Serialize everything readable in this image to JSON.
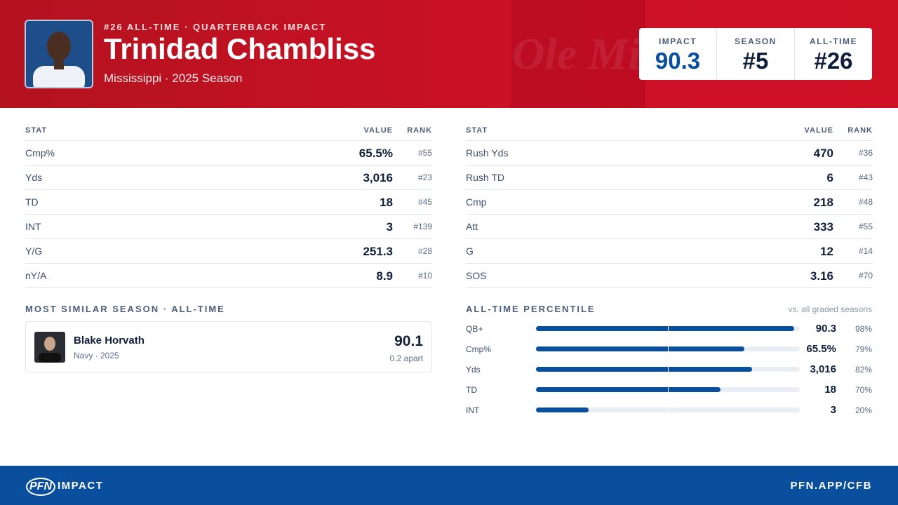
{
  "header": {
    "kicker": "#26 ALL-TIME · QUARTERBACK IMPACT",
    "name": "Trinidad Chambliss",
    "sub": "Mississippi · 2025 Season",
    "watermark": "Ole Miss"
  },
  "summary": [
    {
      "label": "IMPACT",
      "value": "90.3"
    },
    {
      "label": "SEASON",
      "value": "#5"
    },
    {
      "label": "ALL-TIME",
      "value": "#26"
    }
  ],
  "stats_left": {
    "columns": [
      "STAT",
      "VALUE",
      "RANK"
    ],
    "rows": [
      [
        "Cmp%",
        "65.5%",
        "#55"
      ],
      [
        "Yds",
        "3,016",
        "#23"
      ],
      [
        "TD",
        "18",
        "#45"
      ],
      [
        "INT",
        "3",
        "#139"
      ],
      [
        "Y/G",
        "251.3",
        "#28"
      ],
      [
        "nY/A",
        "8.9",
        "#10"
      ]
    ]
  },
  "stats_right": {
    "columns": [
      "STAT",
      "VALUE",
      "RANK"
    ],
    "rows": [
      [
        "Rush Yds",
        "470",
        "#36"
      ],
      [
        "Rush TD",
        "6",
        "#43"
      ],
      [
        "Cmp",
        "218",
        "#48"
      ],
      [
        "Att",
        "333",
        "#55"
      ],
      [
        "G",
        "12",
        "#14"
      ],
      [
        "SOS",
        "3.16",
        "#70"
      ]
    ]
  },
  "similar": {
    "heading": "MOST SIMILAR SEASON · ALL-TIME",
    "name": "Blake Horvath",
    "detail": "Navy · 2025",
    "score": "90.1",
    "gap": "0.2 apart"
  },
  "percentile": {
    "heading": "ALL-TIME PERCENTILE",
    "note": "vs. all graded seasons",
    "rows": [
      {
        "label": "QB+",
        "value": "90.3",
        "pct": {
          "value": 98,
          "label": "98%"
        }
      },
      {
        "label": "Cmp%",
        "value": "65.5%",
        "pct": {
          "value": 79,
          "label": "79%"
        }
      },
      {
        "label": "Yds",
        "value": "3,016",
        "pct": {
          "value": 82,
          "label": "82%"
        }
      },
      {
        "label": "TD",
        "value": "18",
        "pct": {
          "value": 70,
          "label": "70%"
        }
      },
      {
        "label": "INT",
        "value": "3",
        "pct": {
          "value": 20,
          "label": "20%"
        }
      }
    ]
  },
  "footer": {
    "brand": "PFN",
    "section": "IMPACT",
    "url": "PFN.APP/CFB"
  }
}
